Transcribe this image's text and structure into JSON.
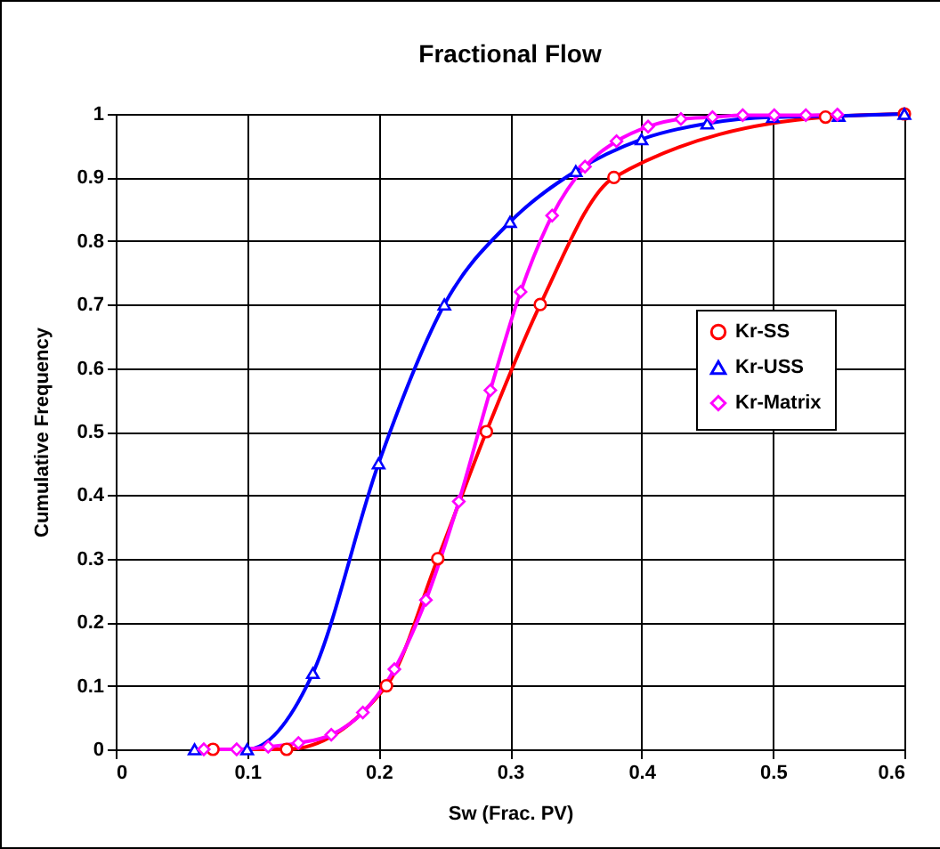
{
  "chart_data": {
    "type": "line",
    "title": "Fractional Flow",
    "xlabel": "Sw (Frac. PV)",
    "ylabel": "Cumulative Frequency",
    "xlim": [
      0,
      0.6
    ],
    "xticks": [
      0,
      0.1,
      0.2,
      0.3,
      0.4,
      0.5,
      0.6
    ],
    "ylim": [
      0,
      1
    ],
    "yticks": [
      0,
      0.1,
      0.2,
      0.3,
      0.4,
      0.5,
      0.6,
      0.7,
      0.8,
      0.9,
      1
    ],
    "grid": true,
    "legend": "right",
    "line_style": "solid",
    "series": [
      {
        "name": "Kr-SS",
        "color": "#ff0000",
        "marker": "circle",
        "x": [
          0.074,
          0.13,
          0.206,
          0.245,
          0.282,
          0.323,
          0.379,
          0.54,
          0.6
        ],
        "values": [
          0,
          0,
          0.1,
          0.3,
          0.5,
          0.7,
          0.9,
          0.995,
          1.0
        ]
      },
      {
        "name": "Kr-USS",
        "color": "#0000ff",
        "marker": "triangle",
        "x": [
          0.06,
          0.1,
          0.15,
          0.2,
          0.25,
          0.3,
          0.35,
          0.4,
          0.45,
          0.5,
          0.55,
          0.6
        ],
        "values": [
          0,
          0,
          0.12,
          0.45,
          0.7,
          0.83,
          0.91,
          0.96,
          0.985,
          0.995,
          0.997,
          1.0
        ]
      },
      {
        "name": "Kr-Matrix",
        "color": "#ff00ff",
        "marker": "diamond",
        "x": [
          0.067,
          0.092,
          0.116,
          0.139,
          0.164,
          0.188,
          0.212,
          0.236,
          0.261,
          0.285,
          0.308,
          0.332,
          0.357,
          0.381,
          0.405,
          0.43,
          0.454,
          0.477,
          0.501,
          0.525,
          0.549
        ],
        "values": [
          0,
          0,
          0.004,
          0.01,
          0.023,
          0.058,
          0.126,
          0.235,
          0.39,
          0.565,
          0.72,
          0.84,
          0.917,
          0.957,
          0.98,
          0.992,
          0.995,
          0.998,
          0.998,
          0.998,
          0.999
        ]
      }
    ]
  }
}
